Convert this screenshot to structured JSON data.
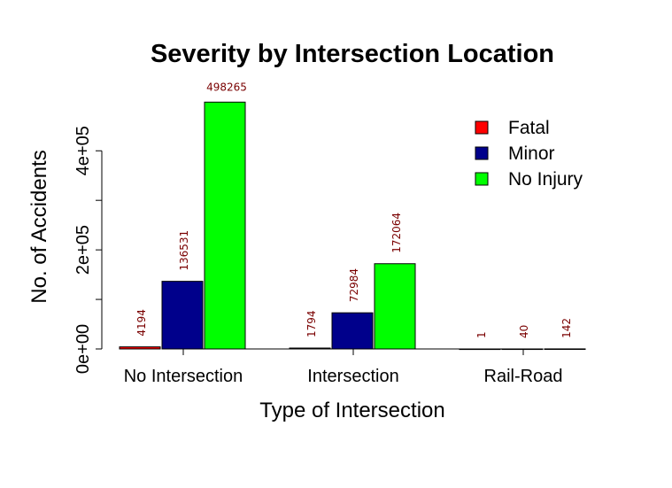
{
  "chart_data": {
    "type": "bar",
    "title": "Severity by Intersection Location",
    "xlabel": "Type of Intersection",
    "ylabel": "No. of Accidents",
    "categories": [
      "No Intersection",
      "Intersection",
      "Rail-Road"
    ],
    "series": [
      {
        "name": "Fatal",
        "color": "#ff0000",
        "values": [
          4194,
          1794,
          1
        ]
      },
      {
        "name": "Minor",
        "color": "#00008b",
        "values": [
          136531,
          72984,
          40
        ]
      },
      {
        "name": "No Injury",
        "color": "#00ff00",
        "values": [
          498265,
          172064,
          142
        ]
      }
    ],
    "data_labels": [
      [
        "4194",
        "1794",
        "1"
      ],
      [
        "136531",
        "72984",
        "40"
      ],
      [
        "498265",
        "172064",
        "142"
      ]
    ],
    "yticks": [
      0,
      200000,
      400000
    ],
    "ytick_labels": [
      "0e+00",
      "2e+05",
      "4e+05"
    ],
    "ylim": [
      0,
      498265
    ],
    "grid": false,
    "legend_position": "top-right",
    "data_label_color": "#7a0000"
  }
}
